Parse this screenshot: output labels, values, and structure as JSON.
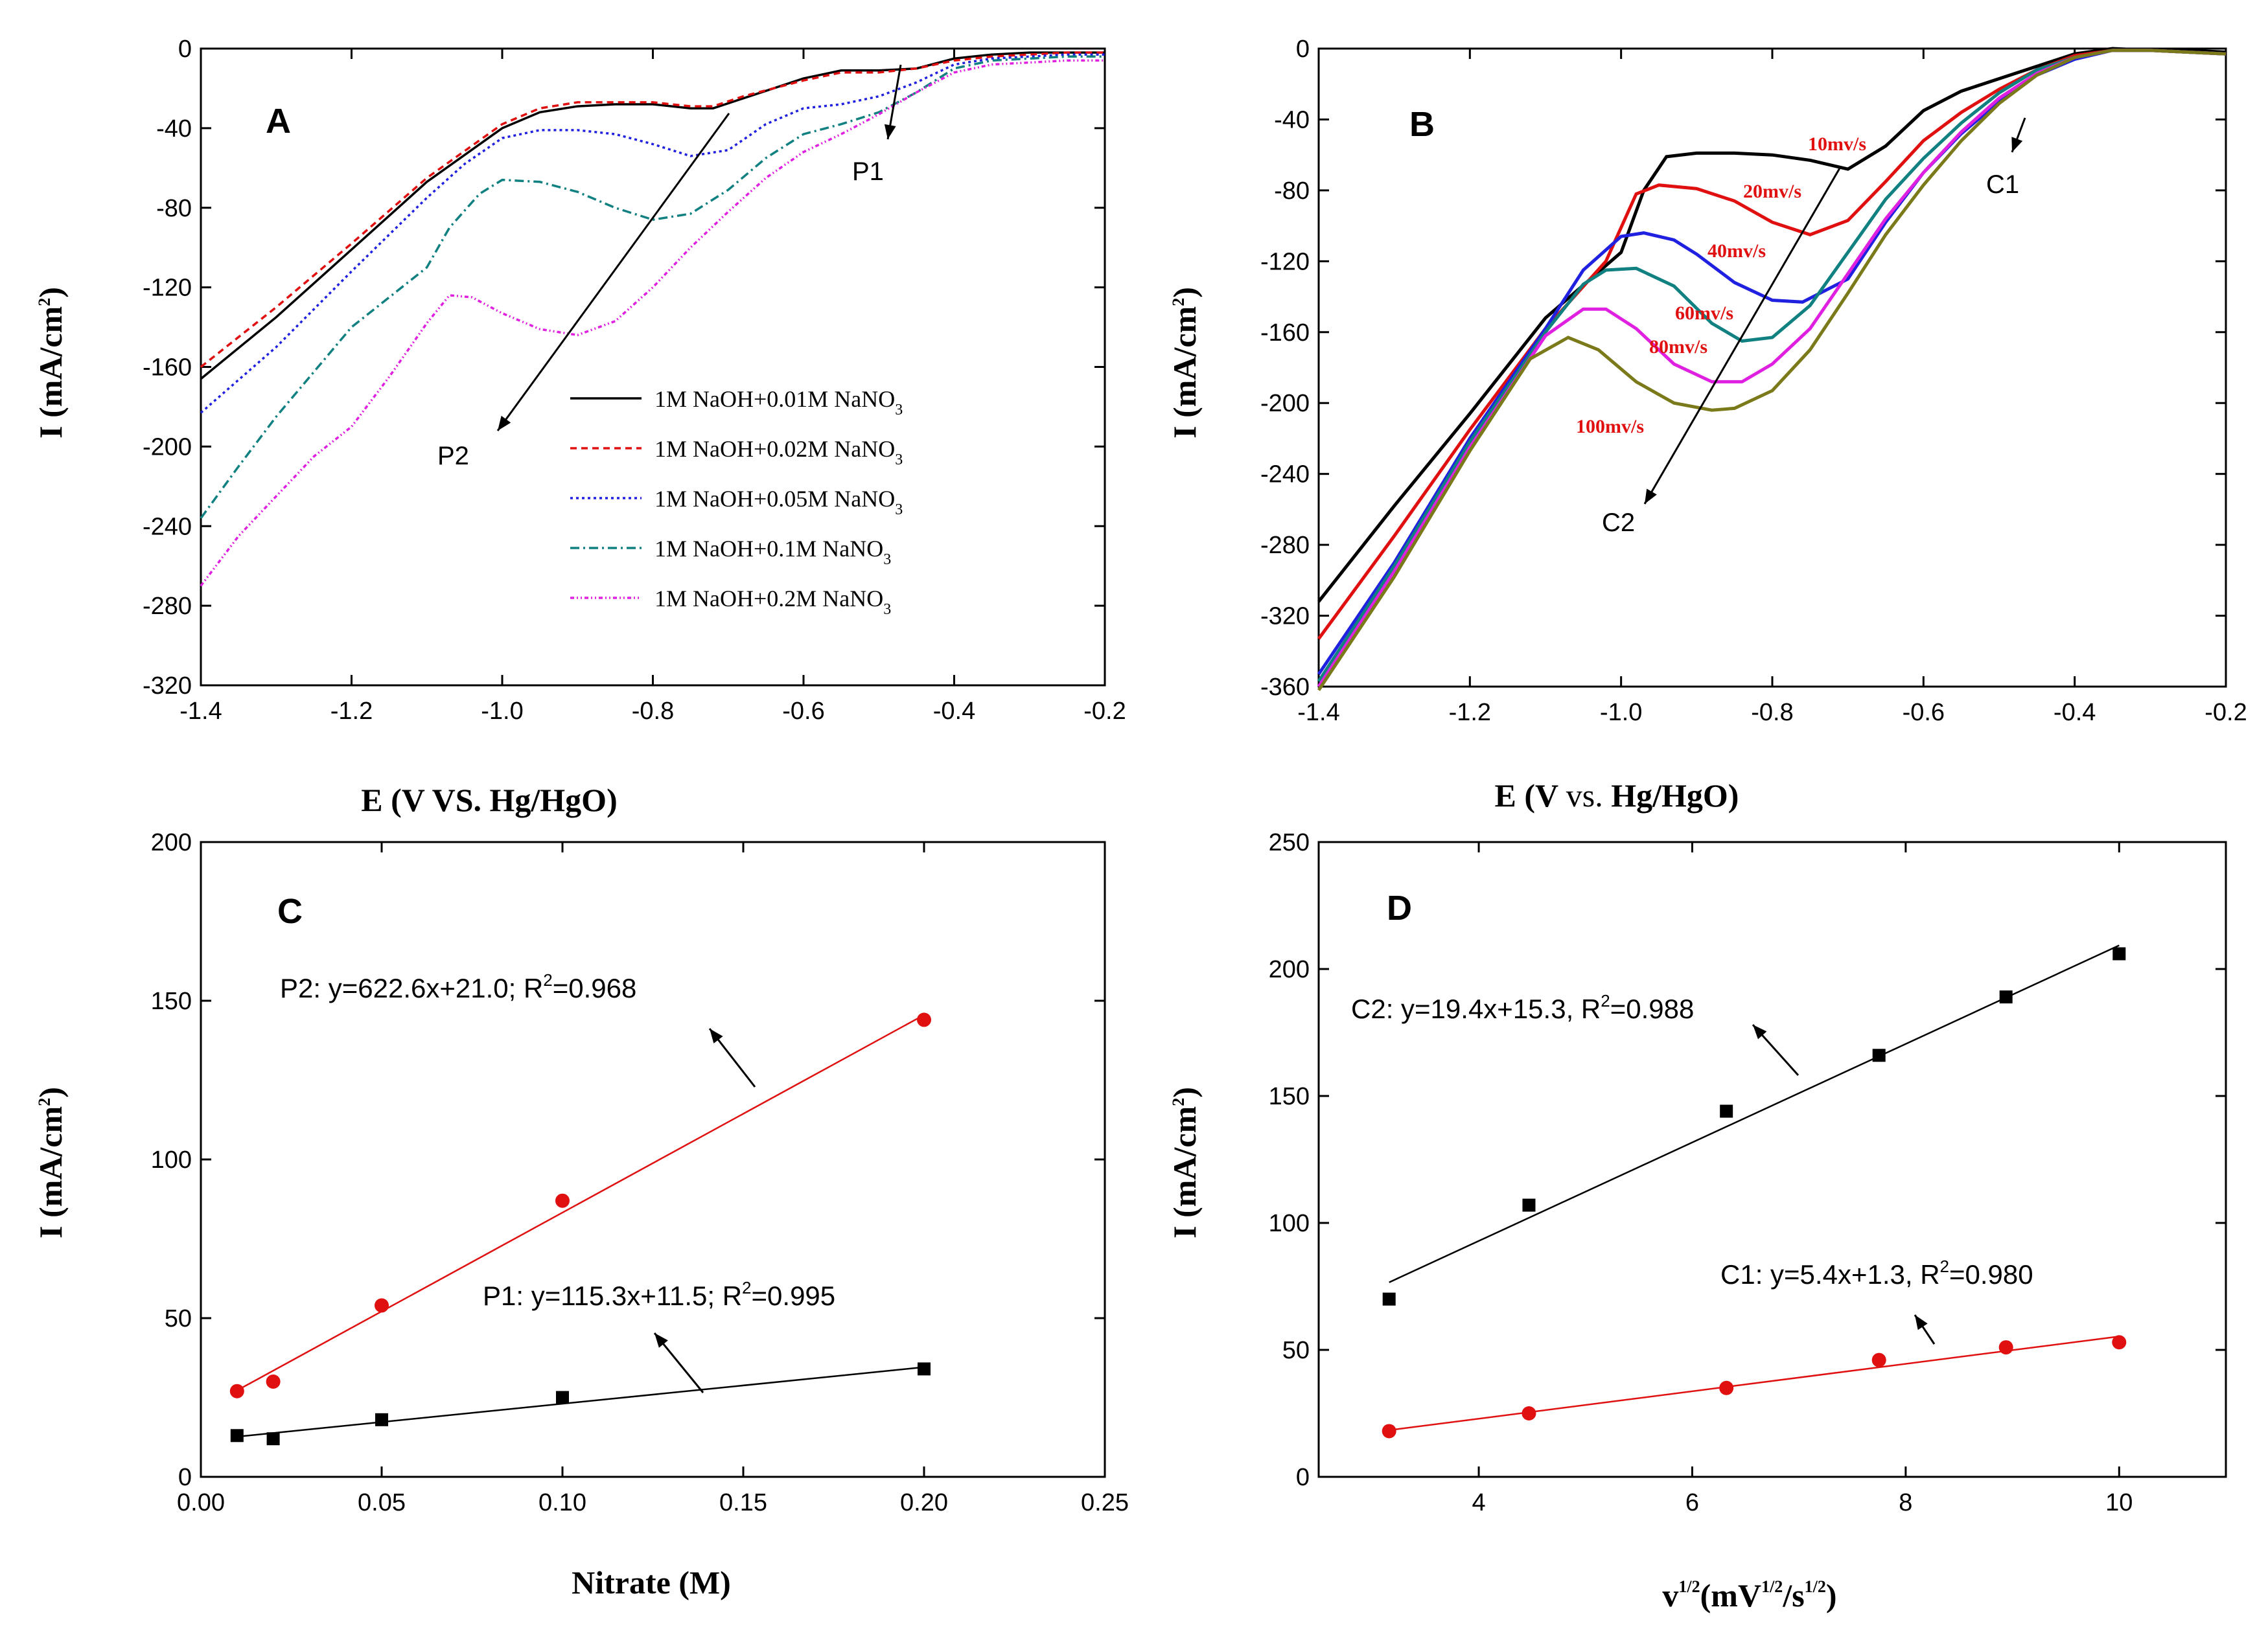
{
  "chart_data": [
    {
      "panel": "A",
      "type": "line",
      "xlabel": "E (V VS. Hg/HgO)",
      "ylabel": "I (mA/cm2)",
      "xlim": [
        -1.4,
        -0.2
      ],
      "ylim": [
        -320,
        0
      ],
      "xticks": [
        -1.4,
        -1.2,
        -1.0,
        -0.8,
        -0.6,
        -0.4,
        -0.2
      ],
      "yticks": [
        0,
        -40,
        -80,
        -120,
        -160,
        -200,
        -240,
        -280,
        -320
      ],
      "annotations": [
        "P1",
        "P2"
      ],
      "series": [
        {
          "name": "1M NaOH+0.01M NaNO3",
          "label_main": "1M NaOH+0.01M NaNO",
          "label_sub": "3",
          "color": "#000000",
          "dash": "",
          "x": [
            -1.4,
            -1.3,
            -1.2,
            -1.1,
            -1.0,
            -0.95,
            -0.9,
            -0.85,
            -0.8,
            -0.75,
            -0.72,
            -0.68,
            -0.6,
            -0.55,
            -0.5,
            -0.45,
            -0.4,
            -0.35,
            -0.3,
            -0.25,
            -0.2
          ],
          "y": [
            -166,
            -135,
            -101,
            -67,
            -40,
            -32,
            -29,
            -28,
            -28,
            -30,
            -30,
            -25,
            -15,
            -11,
            -11,
            -10,
            -5,
            -3,
            -2,
            -2,
            -2
          ]
        },
        {
          "name": "1M NaOH+0.02M NaNO3",
          "label_main": "1M NaOH+0.02M NaNO",
          "label_sub": "3",
          "color": "#e01010",
          "dash": "10,7",
          "x": [
            -1.4,
            -1.3,
            -1.2,
            -1.1,
            -1.0,
            -0.95,
            -0.9,
            -0.85,
            -0.8,
            -0.75,
            -0.72,
            -0.68,
            -0.6,
            -0.55,
            -0.5,
            -0.45,
            -0.4,
            -0.35,
            -0.3,
            -0.25,
            -0.2
          ],
          "y": [
            -160,
            -130,
            -98,
            -65,
            -38,
            -30,
            -27,
            -27,
            -27,
            -29,
            -29,
            -24,
            -16,
            -12,
            -12,
            -10,
            -6,
            -4,
            -3,
            -2,
            -2
          ]
        },
        {
          "name": "1M NaOH+0.05M NaNO3",
          "label_main": "1M NaOH+0.05M NaNO",
          "label_sub": "3",
          "color": "#2020e0",
          "dash": "4,5",
          "x": [
            -1.4,
            -1.3,
            -1.2,
            -1.1,
            -1.05,
            -1.0,
            -0.95,
            -0.9,
            -0.85,
            -0.8,
            -0.75,
            -0.7,
            -0.65,
            -0.6,
            -0.55,
            -0.5,
            -0.45,
            -0.4,
            -0.35,
            -0.3,
            -0.25,
            -0.2
          ],
          "y": [
            -183,
            -150,
            -112,
            -75,
            -58,
            -45,
            -41,
            -41,
            -43,
            -48,
            -54,
            -51,
            -38,
            -30,
            -28,
            -24,
            -17,
            -8,
            -5,
            -4,
            -3,
            -3
          ]
        },
        {
          "name": "1M NaOH+0.1M NaNO3",
          "label_main": "1M NaOH+0.1M NaNO",
          "label_sub": "3",
          "color": "#108080",
          "dash": "14,6,3,6",
          "x": [
            -1.4,
            -1.35,
            -1.3,
            -1.2,
            -1.1,
            -1.07,
            -1.03,
            -1.0,
            -0.95,
            -0.9,
            -0.85,
            -0.8,
            -0.75,
            -0.7,
            -0.65,
            -0.6,
            -0.55,
            -0.5,
            -0.45,
            -0.4,
            -0.35,
            -0.3,
            -0.25,
            -0.2
          ],
          "y": [
            -236,
            -210,
            -185,
            -140,
            -110,
            -90,
            -73,
            -66,
            -67,
            -72,
            -80,
            -86,
            -83,
            -71,
            -55,
            -43,
            -38,
            -32,
            -22,
            -10,
            -6,
            -5,
            -4,
            -4
          ]
        },
        {
          "name": "1M NaOH+0.2M NaNO3",
          "label_main": "1M NaOH+0.2M NaNO",
          "label_sub": "3",
          "color": "#e020e0",
          "dash": "6,4,2,4,2,4",
          "x": [
            -1.4,
            -1.35,
            -1.3,
            -1.25,
            -1.2,
            -1.15,
            -1.1,
            -1.07,
            -1.04,
            -1.0,
            -0.95,
            -0.9,
            -0.85,
            -0.8,
            -0.75,
            -0.7,
            -0.65,
            -0.6,
            -0.55,
            -0.5,
            -0.45,
            -0.4,
            -0.35,
            -0.3,
            -0.25,
            -0.2
          ],
          "y": [
            -270,
            -245,
            -225,
            -205,
            -190,
            -165,
            -138,
            -124,
            -125,
            -133,
            -141,
            -144,
            -137,
            -120,
            -100,
            -82,
            -65,
            -52,
            -43,
            -33,
            -22,
            -12,
            -8,
            -7,
            -6,
            -6
          ]
        }
      ]
    },
    {
      "panel": "B",
      "type": "line",
      "xlabel": "E (V vs. Hg/HgO)",
      "ylabel": "I (mA/cm2)",
      "xlim": [
        -1.4,
        -0.2
      ],
      "ylim": [
        -360,
        0
      ],
      "xticks": [
        -1.4,
        -1.2,
        -1.0,
        -0.8,
        -0.6,
        -0.4,
        -0.2
      ],
      "yticks": [
        0,
        -40,
        -80,
        -120,
        -160,
        -200,
        -240,
        -280,
        -320,
        -360
      ],
      "annotations": [
        "C1",
        "C2"
      ],
      "series": [
        {
          "name": "10mv/s",
          "color": "#000000",
          "x": [
            -1.4,
            -1.3,
            -1.2,
            -1.1,
            -1.0,
            -0.97,
            -0.94,
            -0.9,
            -0.85,
            -0.8,
            -0.75,
            -0.7,
            -0.65,
            -0.6,
            -0.55,
            -0.5,
            -0.45,
            -0.4,
            -0.35,
            -0.3,
            -0.25,
            -0.2
          ],
          "y": [
            -312,
            -258,
            -206,
            -152,
            -115,
            -80,
            -61,
            -59,
            -59,
            -60,
            -63,
            -68,
            -55,
            -35,
            -24,
            -17,
            -10,
            -3,
            0,
            -1,
            -1,
            -2
          ]
        },
        {
          "name": "20mv/s",
          "color": "#e01010",
          "x": [
            -1.4,
            -1.3,
            -1.2,
            -1.1,
            -1.02,
            -0.98,
            -0.95,
            -0.9,
            -0.85,
            -0.8,
            -0.75,
            -0.7,
            -0.65,
            -0.6,
            -0.55,
            -0.5,
            -0.45,
            -0.4,
            -0.35,
            -0.3,
            -0.25,
            -0.2
          ],
          "y": [
            -333,
            -275,
            -215,
            -158,
            -120,
            -82,
            -77,
            -79,
            -86,
            -98,
            -105,
            -97,
            -75,
            -52,
            -36,
            -23,
            -12,
            -4,
            -1,
            -1,
            -2,
            -3
          ]
        },
        {
          "name": "40mv/s",
          "color": "#2020e0",
          "x": [
            -1.4,
            -1.3,
            -1.2,
            -1.1,
            -1.05,
            -1.0,
            -0.97,
            -0.93,
            -0.9,
            -0.85,
            -0.8,
            -0.76,
            -0.7,
            -0.65,
            -0.6,
            -0.55,
            -0.5,
            -0.45,
            -0.4,
            -0.35,
            -0.3,
            -0.25,
            -0.2
          ],
          "y": [
            -353,
            -290,
            -220,
            -158,
            -125,
            -106,
            -104,
            -108,
            -116,
            -132,
            -142,
            -143,
            -130,
            -98,
            -70,
            -48,
            -30,
            -15,
            -6,
            -1,
            -1,
            -2,
            -3
          ]
        },
        {
          "name": "60mv/s",
          "color": "#108080",
          "x": [
            -1.4,
            -1.3,
            -1.2,
            -1.1,
            -1.05,
            -1.02,
            -0.98,
            -0.93,
            -0.88,
            -0.84,
            -0.8,
            -0.75,
            -0.7,
            -0.65,
            -0.6,
            -0.55,
            -0.5,
            -0.45,
            -0.4,
            -0.35,
            -0.3,
            -0.25,
            -0.2
          ],
          "y": [
            -357,
            -292,
            -222,
            -160,
            -133,
            -125,
            -124,
            -134,
            -155,
            -165,
            -163,
            -145,
            -115,
            -85,
            -62,
            -42,
            -25,
            -12,
            -5,
            -1,
            -1,
            -2,
            -3
          ]
        },
        {
          "name": "80mv/s",
          "color": "#e020e0",
          "x": [
            -1.4,
            -1.3,
            -1.2,
            -1.1,
            -1.05,
            -1.02,
            -0.98,
            -0.93,
            -0.88,
            -0.84,
            -0.8,
            -0.75,
            -0.7,
            -0.65,
            -0.6,
            -0.55,
            -0.5,
            -0.45,
            -0.4,
            -0.35,
            -0.3,
            -0.25,
            -0.2
          ],
          "y": [
            -360,
            -295,
            -225,
            -162,
            -147,
            -147,
            -158,
            -178,
            -188,
            -188,
            -178,
            -158,
            -127,
            -96,
            -70,
            -47,
            -28,
            -14,
            -5,
            -1,
            -1,
            -2,
            -3
          ]
        },
        {
          "name": "100mv/s",
          "color": "#7a7a1a",
          "x": [
            -1.4,
            -1.3,
            -1.2,
            -1.12,
            -1.07,
            -1.03,
            -0.98,
            -0.93,
            -0.88,
            -0.85,
            -0.8,
            -0.75,
            -0.7,
            -0.65,
            -0.6,
            -0.55,
            -0.5,
            -0.45,
            -0.4,
            -0.35,
            -0.3,
            -0.25,
            -0.2
          ],
          "y": [
            -362,
            -298,
            -227,
            -175,
            -163,
            -170,
            -188,
            -200,
            -204,
            -203,
            -193,
            -170,
            -138,
            -105,
            -77,
            -52,
            -31,
            -15,
            -5,
            -1,
            -1,
            -2,
            -3
          ]
        }
      ]
    },
    {
      "panel": "C",
      "type": "scatter",
      "xlabel": "Nitrate (M)",
      "ylabel": "I (mA/cm2)",
      "xlim": [
        0.0,
        0.25
      ],
      "ylim": [
        0,
        200
      ],
      "xticks": [
        0.0,
        0.05,
        0.1,
        0.15,
        0.2,
        0.25
      ],
      "yticks": [
        0,
        50,
        100,
        150,
        200
      ],
      "series": [
        {
          "name": "P2",
          "color": "#e01010",
          "marker": "circle",
          "x": [
            0.01,
            0.02,
            0.05,
            0.1,
            0.2
          ],
          "y": [
            27,
            30,
            54,
            87,
            144
          ],
          "fit": {
            "slope": 622.6,
            "intercept": 21.0,
            "x": [
              0.01,
              0.2
            ]
          },
          "fit_text": "P2: y=622.6x+21.0; R",
          "r2_text": "=0.968"
        },
        {
          "name": "P1",
          "color": "#000000",
          "marker": "square",
          "x": [
            0.01,
            0.02,
            0.05,
            0.1,
            0.2
          ],
          "y": [
            13,
            12,
            18,
            25,
            34
          ],
          "fit": {
            "slope": 115.3,
            "intercept": 11.5,
            "x": [
              0.01,
              0.2
            ]
          },
          "fit_text": "P1: y=115.3x+11.5; R",
          "r2_text": "=0.995"
        }
      ]
    },
    {
      "panel": "D",
      "type": "scatter",
      "xlabel": "v1/2(mV1/2/s1/2)",
      "ylabel": "I (mA/cm2)",
      "xlim": [
        2.5,
        11
      ],
      "ylim": [
        0,
        250
      ],
      "xticks": [
        4,
        6,
        8,
        10
      ],
      "yticks": [
        0,
        50,
        100,
        150,
        200,
        250
      ],
      "series": [
        {
          "name": "C2",
          "color": "#000000",
          "marker": "square",
          "x": [
            3.16,
            4.47,
            6.32,
            7.75,
            8.94,
            10.0
          ],
          "y": [
            70,
            107,
            144,
            166,
            189,
            206
          ],
          "fit": {
            "slope": 19.4,
            "intercept": 15.3,
            "x": [
              3.16,
              10.0
            ]
          },
          "fit_text": "C2: y=19.4x+15.3, R",
          "r2_text": "=0.988"
        },
        {
          "name": "C1",
          "color": "#e01010",
          "marker": "circle",
          "x": [
            3.16,
            4.47,
            6.32,
            7.75,
            8.94,
            10.0
          ],
          "y": [
            18,
            25,
            35,
            46,
            51,
            53
          ],
          "fit": {
            "slope": 5.4,
            "intercept": 1.3,
            "x": [
              3.16,
              10.0
            ]
          },
          "fit_text": "C1: y=5.4x+1.3, R",
          "r2_text": "=0.980"
        }
      ]
    }
  ],
  "labels": {
    "panel_a": "A",
    "panel_b": "B",
    "panel_c": "C",
    "panel_d": "D",
    "p1": "P1",
    "p2": "P2",
    "c1": "C1",
    "c2": "C2",
    "ylabel_main": "I (mA/cm",
    "ylabel_sup": "2",
    "ylabel_close": ")",
    "xlabel_a": "E (V VS. Hg/HgO)",
    "xlabel_b_e": "E (V ",
    "xlabel_b_vs": "vs.",
    "xlabel_b_rest": " Hg/HgO)",
    "xlabel_c": "Nitrate (M)",
    "xlabel_d_v": "v",
    "xlabel_d_sup1": "1/2",
    "xlabel_d_mid": "(mV",
    "xlabel_d_sup2": "1/2",
    "xlabel_d_slash": "/s",
    "xlabel_d_sup3": "1/2",
    "xlabel_d_close": ")",
    "r2_sup": "2"
  }
}
